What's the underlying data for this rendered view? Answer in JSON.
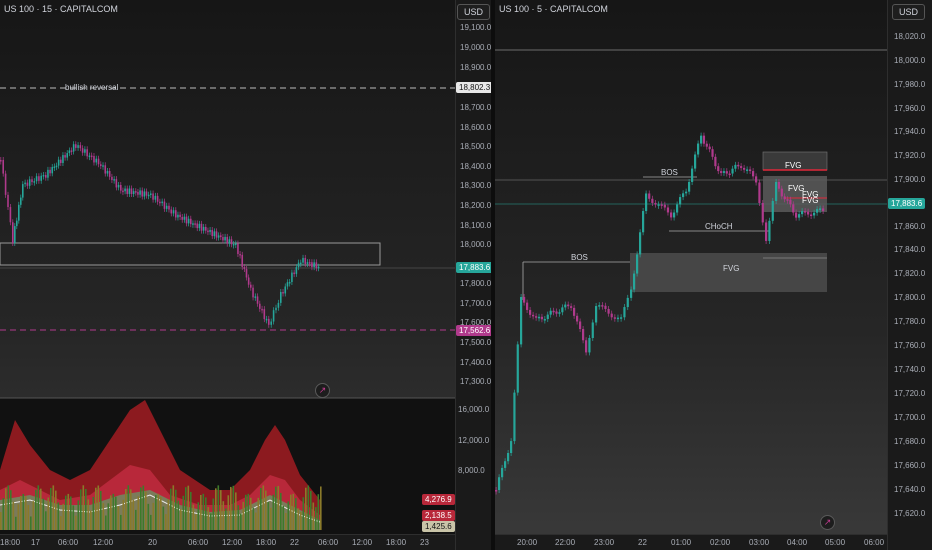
{
  "left": {
    "title": "US 100 · 15 · CAPITALCOM",
    "currency": "USD",
    "price_ticks": [
      "19,100.0",
      "19,000.0",
      "18,900.0",
      "18,700.0",
      "18,600.0",
      "18,500.0",
      "18,400.0",
      "18,300.0",
      "18,200.0",
      "18,100.0",
      "18,000.0",
      "17,800.0",
      "17,700.0",
      "17,600.0",
      "17,500.0",
      "17,400.0",
      "17,300.0"
    ],
    "indicator_ticks": [
      "16,000.0",
      "12,000.0",
      "8,000.0"
    ],
    "time_ticks": [
      "18:00",
      "17",
      "06:00",
      "12:00",
      "20",
      "06:00",
      "12:00",
      "18:00",
      "22",
      "06:00",
      "12:00",
      "18:00",
      "23"
    ],
    "annotation": "bullish reversal",
    "tag_reversal": "18,802.3",
    "tag_price": "17,883.6",
    "tag_low": "17,562.6",
    "ind_tag1": "4,276.9",
    "ind_tag2": "2,138.5",
    "ind_tag3": "1,425.6",
    "colors": {
      "up": "#26a69a",
      "down": "#b03a8c",
      "accent": "#c2185b"
    }
  },
  "right": {
    "title": "US 100 · 5 · CAPITALCOM",
    "currency": "USD",
    "price_ticks": [
      "18,020.0",
      "18,000.0",
      "17,980.0",
      "17,960.0",
      "17,940.0",
      "17,920.0",
      "17,900.0",
      "17,860.0",
      "17,840.0",
      "17,820.0",
      "17,800.0",
      "17,780.0",
      "17,760.0",
      "17,740.0",
      "17,720.0",
      "17,700.0",
      "17,680.0",
      "17,660.0",
      "17,640.0",
      "17,620.0"
    ],
    "time_ticks": [
      "20:00",
      "22:00",
      "23:00",
      "22",
      "01:00",
      "02:00",
      "03:00",
      "04:00",
      "05:00",
      "06:00"
    ],
    "labels": {
      "bos1": "BOS",
      "bos2": "BOS",
      "choch": "CHoCH",
      "fvg_big": "FVG",
      "fvg1": "FVG",
      "fvg2": "FVG",
      "fvg3": "FVG",
      "fvg4": "FVG"
    },
    "tag_price": "17,883.6"
  }
}
